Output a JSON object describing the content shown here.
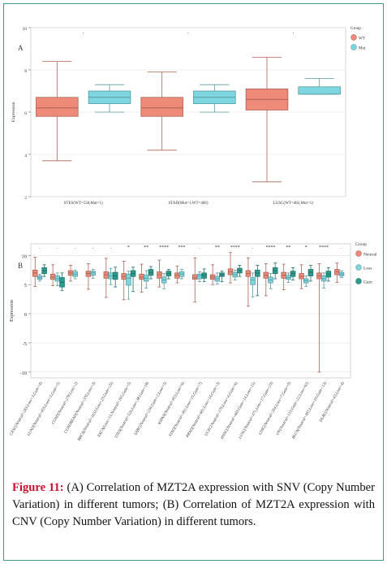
{
  "panel_a": {
    "label": "A"
  },
  "panel_b": {
    "label": "B"
  },
  "caption": {
    "prefix": "Figure 11:",
    "text": " (A) Correlation of MZT2A expression with SNV (Copy Number Variation) in different tumors; (B) Correlation of MZT2A expression with CNV (Copy Number Variation) in different tumors."
  },
  "chart_data": [
    {
      "type": "box",
      "ylabel": "Expression",
      "ylim": [
        2,
        10
      ],
      "yticks": [
        2,
        4,
        6,
        8,
        10
      ],
      "grid": true,
      "legend": {
        "title": "Group",
        "placement": "right",
        "entries": [
          {
            "name": "WT",
            "color": "#ee8a78"
          },
          {
            "name": "Mut",
            "color": "#7ed6e0"
          }
        ]
      },
      "categories": [
        "STES(WT=558,Mut=1)",
        "STAD(Mut=1,WT=406)",
        "LUSC(WT=482,Mut=1)"
      ],
      "significance": [
        ".",
        ".",
        "."
      ],
      "series": [
        {
          "name": "WT",
          "boxes": [
            {
              "min": 3.7,
              "q1": 5.8,
              "median": 6.2,
              "q3": 6.7,
              "max": 8.4
            },
            {
              "min": 4.2,
              "q1": 5.8,
              "median": 6.2,
              "q3": 6.7,
              "max": 7.9
            },
            {
              "min": 2.7,
              "q1": 6.1,
              "median": 6.6,
              "q3": 7.1,
              "max": 8.6
            }
          ]
        },
        {
          "name": "Mut",
          "boxes": [
            {
              "min": 6.0,
              "q1": 6.4,
              "median": 6.7,
              "q3": 7.0,
              "max": 7.3
            },
            {
              "min": 6.0,
              "q1": 6.4,
              "median": 6.7,
              "q3": 7.0,
              "max": 7.3
            },
            {
              "min": 6.85,
              "q1": 6.85,
              "median": 6.85,
              "q3": 7.2,
              "max": 7.6
            }
          ]
        }
      ]
    },
    {
      "type": "box",
      "ylabel": "Expression",
      "ylim": [
        -11,
        12
      ],
      "yticks": [
        -10,
        -5,
        0,
        5,
        10
      ],
      "grid": true,
      "legend": {
        "title": "Group",
        "placement": "right",
        "entries": [
          {
            "name": "Neutral",
            "color": "#ee8a78"
          },
          {
            "name": "Loss",
            "color": "#7ed6e0"
          },
          {
            "name": "Gain",
            "color": "#2a9d8f"
          }
        ]
      },
      "categories": [
        "CESC(Neutral=283,Loss=3,Gain=4)",
        "LUAD(Neutral=459,Loss=5,Gain=5)",
        "COAD(Neutral=278,Loss=2)",
        "COADREAD(Neutral=370,Loss=3)",
        "BRCA(Neutral=1033,Loss=23,Gain=25)",
        "ESCA(Loss=13,Neutral=165,Gain=5)",
        "STES(Neutral=526,Loss=38,Gain=18)",
        "SARC(Neutral=234,Gain=2,Loss=5)",
        "KIPAN(Neutral=853,Loss=6)",
        "STAD(Neutral=361,Loss=15,Gain=7)",
        "PRAD(Neutral=481,Loss=14,Gain=3)",
        "UCEC(Neutral=179,Loss=4,Gain=6)",
        "HNSC(Neutral=483,Gain=14,Loss=15)",
        "LUSC(Neutral=471,Loss=17,Gain=23)",
        "LIHC(Neutral=354,Loss=7,Gain=9)",
        "OV(Neutral=133,Gain=22,Loss=62)",
        "BLCA(Neutral=383,Loss=19,Gain=13)",
        "DLBC(Neutral=43,Loss=4)"
      ],
      "significance": [
        ".",
        ".",
        ".",
        ".",
        ".",
        "*",
        "**",
        "****",
        "***",
        ".",
        "**",
        "****",
        ".",
        "****",
        "**",
        "*",
        "****",
        "."
      ],
      "series": [
        {
          "name": "Neutral",
          "boxes": [
            {
              "min": 4.7,
              "q1": 6.4,
              "median": 7.0,
              "q3": 7.5,
              "max": 9.7
            },
            {
              "min": 4.8,
              "q1": 5.9,
              "median": 6.3,
              "q3": 6.8,
              "max": 8.4
            },
            {
              "min": 5.6,
              "q1": 6.6,
              "median": 7.0,
              "q3": 7.4,
              "max": 8.3
            },
            {
              "min": 4.2,
              "q1": 6.4,
              "median": 6.9,
              "q3": 7.3,
              "max": 8.6
            },
            {
              "min": 2.8,
              "q1": 6.1,
              "median": 6.7,
              "q3": 7.2,
              "max": 9.5
            },
            {
              "min": 2.4,
              "q1": 5.9,
              "median": 6.4,
              "q3": 6.9,
              "max": 9.0
            },
            {
              "min": 3.7,
              "q1": 5.9,
              "median": 6.3,
              "q3": 6.8,
              "max": 8.5
            },
            {
              "min": 4.6,
              "q1": 6.1,
              "median": 6.7,
              "q3": 7.2,
              "max": 9.2
            },
            {
              "min": 5.3,
              "q1": 6.1,
              "median": 6.6,
              "q3": 7.0,
              "max": 8.2
            },
            {
              "min": 2.0,
              "q1": 5.9,
              "median": 6.2,
              "q3": 6.7,
              "max": 9.6
            },
            {
              "min": 5.0,
              "q1": 5.9,
              "median": 6.3,
              "q3": 6.7,
              "max": 8.4
            },
            {
              "min": 5.3,
              "q1": 6.7,
              "median": 7.2,
              "q3": 7.7,
              "max": 10.5
            },
            {
              "min": 1.3,
              "q1": 6.4,
              "median": 6.9,
              "q3": 7.4,
              "max": 9.6
            },
            {
              "min": 3.1,
              "q1": 6.1,
              "median": 6.6,
              "q3": 7.1,
              "max": 8.6
            },
            {
              "min": 4.1,
              "q1": 6.1,
              "median": 6.6,
              "q3": 7.1,
              "max": 8.5
            },
            {
              "min": 4.3,
              "q1": 6.0,
              "median": 6.4,
              "q3": 6.9,
              "max": 8.4
            },
            {
              "min": -10.0,
              "q1": 6.0,
              "median": 6.5,
              "q3": 7.0,
              "max": 8.6
            },
            {
              "min": 5.4,
              "q1": 6.7,
              "median": 7.2,
              "q3": 7.6,
              "max": 8.7
            }
          ]
        },
        {
          "name": "Loss",
          "boxes": [
            {
              "min": 5.6,
              "q1": 5.9,
              "median": 6.2,
              "q3": 6.5,
              "max": 6.8
            },
            {
              "min": 4.8,
              "q1": 5.6,
              "median": 6.0,
              "q3": 6.5,
              "max": 7.0
            },
            {
              "min": 6.0,
              "q1": 6.4,
              "median": 6.8,
              "q3": 7.2,
              "max": 7.5
            },
            {
              "min": 6.1,
              "q1": 6.6,
              "median": 7.0,
              "q3": 7.3,
              "max": 7.6
            },
            {
              "min": 5.0,
              "q1": 6.0,
              "median": 6.5,
              "q3": 7.0,
              "max": 7.8
            },
            {
              "min": 2.5,
              "q1": 4.9,
              "median": 6.1,
              "q3": 6.8,
              "max": 7.3
            },
            {
              "min": 4.4,
              "q1": 5.6,
              "median": 6.1,
              "q3": 6.6,
              "max": 7.4
            },
            {
              "min": 4.3,
              "q1": 5.3,
              "median": 5.8,
              "q3": 6.3,
              "max": 6.9
            },
            {
              "min": 6.0,
              "q1": 6.4,
              "median": 6.8,
              "q3": 7.2,
              "max": 7.6
            },
            {
              "min": 5.5,
              "q1": 6.0,
              "median": 6.5,
              "q3": 6.8,
              "max": 7.2
            },
            {
              "min": 5.1,
              "q1": 5.6,
              "median": 6.0,
              "q3": 6.4,
              "max": 7.0
            },
            {
              "min": 5.8,
              "q1": 6.3,
              "median": 6.7,
              "q3": 7.1,
              "max": 7.5
            },
            {
              "min": 2.9,
              "q1": 5.0,
              "median": 5.8,
              "q3": 6.2,
              "max": 7.0
            },
            {
              "min": 4.3,
              "q1": 5.3,
              "median": 5.8,
              "q3": 6.3,
              "max": 6.9
            },
            {
              "min": 5.4,
              "q1": 5.9,
              "median": 6.2,
              "q3": 6.6,
              "max": 7.0
            },
            {
              "min": 4.7,
              "q1": 5.3,
              "median": 5.7,
              "q3": 6.0,
              "max": 6.5
            },
            {
              "min": 4.4,
              "q1": 5.6,
              "median": 6.0,
              "q3": 6.5,
              "max": 7.0
            },
            {
              "min": 6.2,
              "q1": 6.5,
              "median": 6.8,
              "q3": 7.1,
              "max": 7.4
            }
          ]
        },
        {
          "name": "Gain",
          "boxes": [
            {
              "min": 6.4,
              "q1": 6.9,
              "median": 7.4,
              "q3": 7.9,
              "max": 8.4
            },
            {
              "min": 4.0,
              "q1": 4.6,
              "median": 5.4,
              "q3": 6.2,
              "max": 7.0
            },
            null,
            null,
            {
              "min": 4.6,
              "q1": 5.9,
              "median": 6.5,
              "q3": 7.1,
              "max": 8.0
            },
            {
              "min": 3.8,
              "q1": 6.4,
              "median": 6.9,
              "q3": 7.4,
              "max": 8.0
            },
            {
              "min": 6.0,
              "q1": 6.6,
              "median": 7.1,
              "q3": 7.6,
              "max": 8.1
            },
            {
              "min": 6.0,
              "q1": 6.5,
              "median": 6.9,
              "q3": 7.3,
              "max": 7.6
            },
            null,
            {
              "min": 5.5,
              "q1": 6.1,
              "median": 6.6,
              "q3": 7.0,
              "max": 7.7
            },
            {
              "min": 5.5,
              "q1": 6.4,
              "median": 6.7,
              "q3": 7.0,
              "max": 7.3
            },
            {
              "min": 6.4,
              "q1": 7.0,
              "median": 7.4,
              "q3": 7.8,
              "max": 8.3
            },
            {
              "min": 3.1,
              "q1": 6.4,
              "median": 7.0,
              "q3": 7.5,
              "max": 8.3
            },
            {
              "min": 6.0,
              "q1": 6.9,
              "median": 7.4,
              "q3": 7.9,
              "max": 8.7
            },
            {
              "min": 5.8,
              "q1": 6.4,
              "median": 6.9,
              "q3": 7.3,
              "max": 7.9
            },
            {
              "min": 5.6,
              "q1": 6.5,
              "median": 7.1,
              "q3": 7.6,
              "max": 8.3
            },
            {
              "min": 5.6,
              "q1": 6.3,
              "median": 6.8,
              "q3": 7.3,
              "max": 7.9
            },
            null
          ]
        }
      ]
    }
  ]
}
